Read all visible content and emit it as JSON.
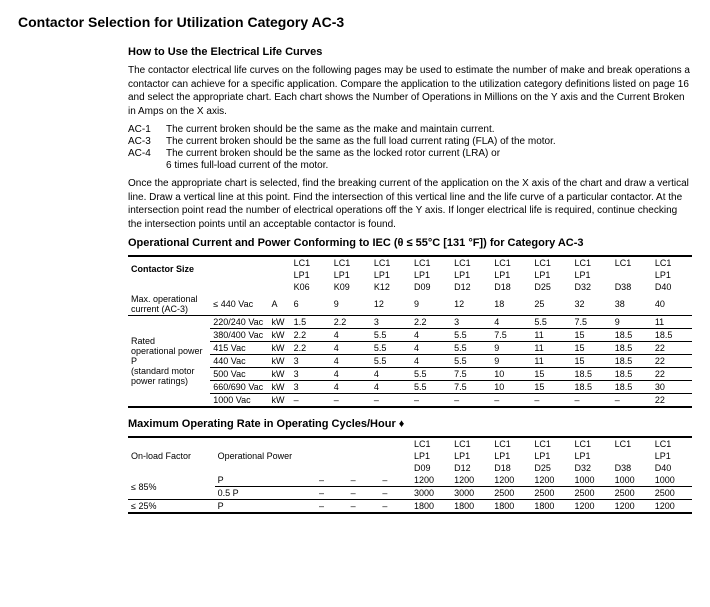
{
  "title": "Contactor Selection for Utilization Category AC-3",
  "howto_heading": "How to Use the Electrical Life Curves",
  "para1": "The contactor electrical life curves on the following pages may be used to estimate the number of make and break operations a contactor can achieve for a specific application. Compare the application to the utilization category definitions listed on page 16 and select the appropriate chart. Each chart shows the Number of Operations in Millions on the Y axis and the Current Broken in Amps on the X axis.",
  "defs": [
    {
      "k": "AC-1",
      "v": "The current broken should be the same as the make and maintain current."
    },
    {
      "k": "AC-3",
      "v": "The current broken should be the same as the full load current rating (FLA) of the motor."
    },
    {
      "k": "AC-4",
      "v": "The current broken should be the same as the locked rotor current (LRA) or"
    },
    {
      "k": "",
      "v": "6 times full-load current of the motor."
    }
  ],
  "para2": "Once the appropriate chart is selected, find the breaking current of the application on the X axis of the chart and draw a vertical line. Draw a vertical line at this point. Find the intersection of this vertical line and the life curve of a particular contactor. At the intersection point read the number of electrical operations off the Y axis. If longer electrical life is required, continue checking the intersection points until an acceptable contactor is found.",
  "table1": {
    "heading": "Operational Current and Power Conforming to IEC (θ ≤ 55°C [131 °F]) for Category AC-3",
    "contactor_size": "Contactor Size",
    "hdr_row1": [
      "LC1",
      "LC1",
      "LC1",
      "LC1",
      "LC1",
      "LC1",
      "LC1",
      "LC1",
      "LC1",
      "LC1"
    ],
    "hdr_row2": [
      "LP1",
      "LP1",
      "LP1",
      "LP1",
      "LP1",
      "LP1",
      "LP1",
      "LP1",
      "",
      "LP1"
    ],
    "hdr_row3": [
      "K06",
      "K09",
      "K12",
      "D09",
      "D12",
      "D18",
      "D25",
      "D32",
      "D38",
      "D40"
    ],
    "max_op": [
      "Max. operational",
      "current (AC-3)"
    ],
    "max_op_cond": "≤ 440 Vac",
    "max_op_unit": "A",
    "max_op_vals": [
      "6",
      "9",
      "12",
      "9",
      "12",
      "18",
      "25",
      "32",
      "38",
      "40"
    ],
    "rated_label": [
      "Rated",
      "operational power P",
      "(standard motor",
      "power ratings)"
    ],
    "rows": [
      {
        "v": "220/240 Vac",
        "u": "kW",
        "d": [
          "1.5",
          "2.2",
          "3",
          "2.2",
          "3",
          "4",
          "5.5",
          "7.5",
          "9",
          "11"
        ]
      },
      {
        "v": "380/400 Vac",
        "u": "kW",
        "d": [
          "2.2",
          "4",
          "5.5",
          "4",
          "5.5",
          "7.5",
          "11",
          "15",
          "18.5",
          "18.5"
        ]
      },
      {
        "v": "415 Vac",
        "u": "kW",
        "d": [
          "2.2",
          "4",
          "5.5",
          "4",
          "5.5",
          "9",
          "11",
          "15",
          "18.5",
          "22"
        ]
      },
      {
        "v": "440 Vac",
        "u": "kW",
        "d": [
          "3",
          "4",
          "5.5",
          "4",
          "5.5",
          "9",
          "11",
          "15",
          "18.5",
          "22"
        ]
      },
      {
        "v": "500 Vac",
        "u": "kW",
        "d": [
          "3",
          "4",
          "4",
          "5.5",
          "7.5",
          "10",
          "15",
          "18.5",
          "18.5",
          "22"
        ]
      },
      {
        "v": "660/690 Vac",
        "u": "kW",
        "d": [
          "3",
          "4",
          "4",
          "5.5",
          "7.5",
          "10",
          "15",
          "18.5",
          "18.5",
          "30"
        ]
      },
      {
        "v": "1000 Vac",
        "u": "kW",
        "d": [
          "–",
          "–",
          "–",
          "–",
          "–",
          "–",
          "–",
          "–",
          "–",
          "22"
        ]
      }
    ]
  },
  "table2": {
    "heading": "Maximum Operating Rate in Operating Cycles/Hour ♦",
    "onload": "On-load Factor",
    "oppower": "Operational Power",
    "hdr_row1": [
      "LC1",
      "LC1",
      "LC1",
      "LC1",
      "LC1",
      "LC1",
      "LC1"
    ],
    "hdr_row2": [
      "LP1",
      "LP1",
      "LP1",
      "LP1",
      "LP1",
      "",
      "LP1"
    ],
    "hdr_row3": [
      "D09",
      "D12",
      "D18",
      "D25",
      "D32",
      "D38",
      "D40"
    ],
    "rows": [
      {
        "f": "≤ 85%",
        "p": "P",
        "sm": [
          "–",
          "–",
          "–"
        ],
        "d": [
          "1200",
          "1200",
          "1200",
          "1200",
          "1000",
          "1000",
          "1000"
        ]
      },
      {
        "f": "",
        "p": "0.5 P",
        "sm": [
          "–",
          "–",
          "–"
        ],
        "d": [
          "3000",
          "3000",
          "2500",
          "2500",
          "2500",
          "2500",
          "2500"
        ]
      },
      {
        "f": "≤ 25%",
        "p": "P",
        "sm": [
          "–",
          "–",
          "–"
        ],
        "d": [
          "1800",
          "1800",
          "1800",
          "1800",
          "1200",
          "1200",
          "1200"
        ]
      }
    ]
  }
}
